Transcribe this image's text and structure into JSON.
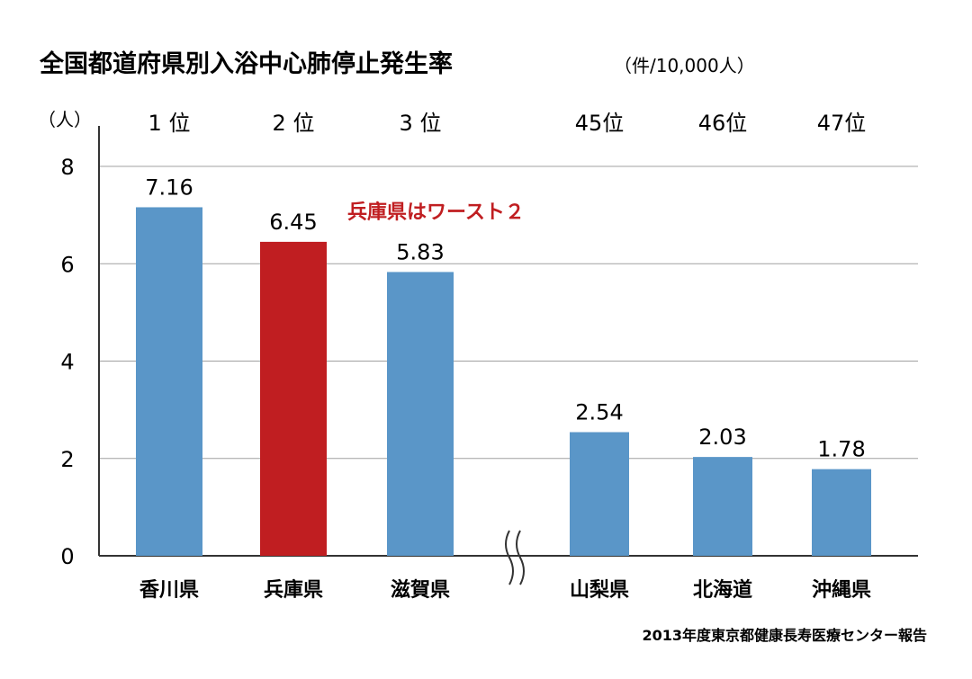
{
  "chart_data": {
    "type": "bar",
    "title": "全国都道府県別入浴中心肺停止発生率",
    "subtitle": "（件/10,000人）",
    "ylabel": "（人）",
    "xlabel": "",
    "ylim": [
      0,
      8
    ],
    "yticks": [
      0,
      2,
      4,
      6,
      8
    ],
    "grid": true,
    "categories": [
      "香川県",
      "兵庫県",
      "滋賀県",
      "山梨県",
      "北海道",
      "沖縄県"
    ],
    "ranks": [
      "1 位",
      "2 位",
      "3 位",
      "45位",
      "46位",
      "47位"
    ],
    "values": [
      7.16,
      6.45,
      5.83,
      2.54,
      2.03,
      1.78
    ],
    "value_labels": [
      "7.16",
      "6.45",
      "5.83",
      "2.54",
      "2.03",
      "1.78"
    ],
    "highlight_index": 1,
    "annotation": "兵庫県はワースト２",
    "axis_break_after_index": 2,
    "source": "2013年度東京都健康長寿医療センター報告",
    "colors": {
      "bar": "#5a96c8",
      "highlight": "#c01e21",
      "annotation": "#c01e21",
      "grid": "#a0a0a0",
      "axis": "#333333"
    }
  }
}
